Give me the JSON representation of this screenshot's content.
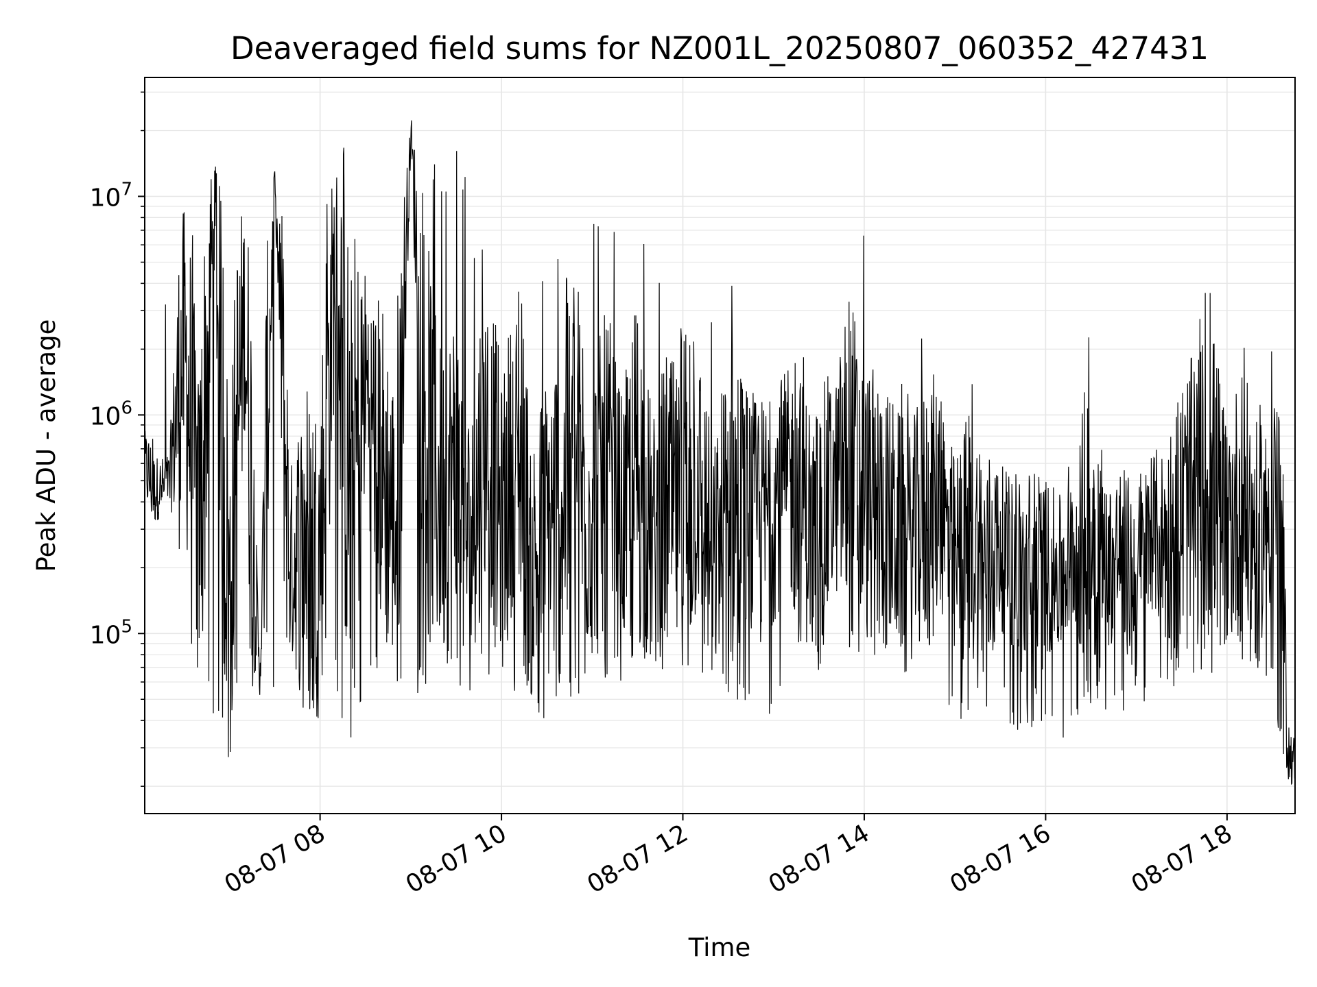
{
  "chart_data": {
    "type": "line",
    "title": "Deaveraged field sums for NZ001L_20250807_060352_427431",
    "xlabel": "Time",
    "ylabel": "Peak ADU - average",
    "yscale": "log",
    "grid": true,
    "line_color": "#000000",
    "grid_color": "#e6e6e6",
    "xlim": [
      "2025-08-07 06:04",
      "2025-08-07 18:45"
    ],
    "ylim": [
      15000,
      35000000
    ],
    "x_ticks": [
      {
        "value": "2025-08-07 08:00",
        "label": "08-07 08"
      },
      {
        "value": "2025-08-07 10:00",
        "label": "08-07 10"
      },
      {
        "value": "2025-08-07 12:00",
        "label": "08-07 12"
      },
      {
        "value": "2025-08-07 14:00",
        "label": "08-07 14"
      },
      {
        "value": "2025-08-07 16:00",
        "label": "08-07 16"
      },
      {
        "value": "2025-08-07 18:00",
        "label": "08-07 18"
      }
    ],
    "y_ticks": [
      {
        "value": 100000,
        "base": "10",
        "exp": "5"
      },
      {
        "value": 1000000,
        "base": "10",
        "exp": "6"
      },
      {
        "value": 10000000,
        "base": "10",
        "exp": "7"
      }
    ],
    "series": [
      {
        "x": [
          "2025-08-07 06:04",
          "2025-08-07 06:10",
          "2025-08-07 06:20",
          "2025-08-07 06:30",
          "2025-08-07 06:40",
          "2025-08-07 06:50",
          "2025-08-07 07:00",
          "2025-08-07 07:10",
          "2025-08-07 07:20",
          "2025-08-07 07:30",
          "2025-08-07 07:40",
          "2025-08-07 07:50",
          "2025-08-07 08:00",
          "2025-08-07 08:10",
          "2025-08-07 08:20",
          "2025-08-07 08:30",
          "2025-08-07 08:40",
          "2025-08-07 08:50",
          "2025-08-07 09:00",
          "2025-08-07 09:10",
          "2025-08-07 09:20",
          "2025-08-07 09:30",
          "2025-08-07 09:40",
          "2025-08-07 09:50",
          "2025-08-07 10:00",
          "2025-08-07 10:10",
          "2025-08-07 10:20",
          "2025-08-07 10:30",
          "2025-08-07 10:40",
          "2025-08-07 10:50",
          "2025-08-07 11:00",
          "2025-08-07 11:10",
          "2025-08-07 11:20",
          "2025-08-07 11:30",
          "2025-08-07 11:40",
          "2025-08-07 11:50",
          "2025-08-07 12:00",
          "2025-08-07 12:10",
          "2025-08-07 12:20",
          "2025-08-07 12:30",
          "2025-08-07 12:40",
          "2025-08-07 12:50",
          "2025-08-07 13:00",
          "2025-08-07 13:10",
          "2025-08-07 13:20",
          "2025-08-07 13:30",
          "2025-08-07 13:40",
          "2025-08-07 13:50",
          "2025-08-07 14:00",
          "2025-08-07 14:10",
          "2025-08-07 14:20",
          "2025-08-07 14:30",
          "2025-08-07 14:40",
          "2025-08-07 14:50",
          "2025-08-07 15:00",
          "2025-08-07 15:10",
          "2025-08-07 15:20",
          "2025-08-07 15:30",
          "2025-08-07 15:40",
          "2025-08-07 15:50",
          "2025-08-07 16:00",
          "2025-08-07 16:10",
          "2025-08-07 16:20",
          "2025-08-07 16:30",
          "2025-08-07 16:40",
          "2025-08-07 16:50",
          "2025-08-07 17:00",
          "2025-08-07 17:10",
          "2025-08-07 17:20",
          "2025-08-07 17:30",
          "2025-08-07 17:40",
          "2025-08-07 17:50",
          "2025-08-07 18:00",
          "2025-08-07 18:10",
          "2025-08-07 18:20",
          "2025-08-07 18:25",
          "2025-08-07 18:30",
          "2025-08-07 18:35",
          "2025-08-07 18:40",
          "2025-08-07 18:45"
        ],
        "y": [
          600000,
          450000,
          500000,
          2000000,
          300000,
          8000000,
          150000,
          3000000,
          60000,
          12000000,
          200000,
          300000,
          250000,
          5000000,
          400000,
          1500000,
          600000,
          300000,
          20000000,
          800000,
          400000,
          500000,
          250000,
          900000,
          300000,
          800000,
          200000,
          300000,
          400000,
          600000,
          350000,
          500000,
          300000,
          600000,
          250000,
          400000,
          300000,
          500000,
          200000,
          400000,
          350000,
          300000,
          400000,
          500000,
          350000,
          300000,
          450000,
          600000,
          400000,
          350000,
          300000,
          250000,
          350000,
          400000,
          200000,
          300000,
          180000,
          250000,
          200000,
          150000,
          200000,
          180000,
          250000,
          300000,
          200000,
          250000,
          150000,
          300000,
          250000,
          350000,
          400000,
          500000,
          300000,
          400000,
          250000,
          350000,
          450000,
          500000,
          30000,
          25000
        ],
        "envelope_high": [
          900000,
          1000000,
          6000000,
          12000000,
          10000000,
          15000000,
          14000000,
          12000000,
          8000000,
          10000000,
          9000000,
          12000000,
          8000000,
          20000000,
          15000000,
          6000000,
          5000000,
          9000000,
          22000000,
          18000000,
          14000000,
          20000000,
          10000000,
          5000000,
          3000000,
          4000000,
          3500000,
          5000000,
          6000000,
          6000000,
          8000000,
          8000000,
          7000000,
          9000000,
          10000000,
          4000000,
          3000000,
          2500000,
          3000000,
          9000000,
          2000000,
          1500000,
          1800000,
          2000000,
          2500000,
          3000000,
          1500000,
          6000000,
          10000000,
          2000000,
          1500000,
          1500000,
          3000000,
          1500000,
          800000,
          1500000,
          1000000,
          700000,
          600000,
          800000,
          600000,
          500000,
          700000,
          3500000,
          600000,
          700000,
          600000,
          800000,
          900000,
          3000000,
          2500000,
          5000000,
          3000000,
          3000000,
          2000000,
          900000,
          2500000,
          1000000,
          400000,
          50000
        ],
        "envelope_low": [
          300000,
          280000,
          400000,
          120000,
          50000,
          40000,
          25000,
          40000,
          60000,
          50000,
          60000,
          40000,
          40000,
          60000,
          25000,
          50000,
          60000,
          50000,
          50000,
          55000,
          55000,
          50000,
          55000,
          50000,
          50000,
          45000,
          38000,
          40000,
          45000,
          50000,
          55000,
          55000,
          60000,
          60000,
          50000,
          55000,
          55000,
          50000,
          50000,
          45000,
          45000,
          45000,
          40000,
          60000,
          70000,
          65000,
          70000,
          60000,
          70000,
          60000,
          60000,
          60000,
          65000,
          45000,
          40000,
          38000,
          40000,
          45000,
          35000,
          30000,
          40000,
          30000,
          35000,
          40000,
          45000,
          40000,
          45000,
          50000,
          55000,
          60000,
          60000,
          65000,
          70000,
          70000,
          55000,
          50000,
          60000,
          30000,
          20000,
          20000
        ]
      }
    ]
  }
}
